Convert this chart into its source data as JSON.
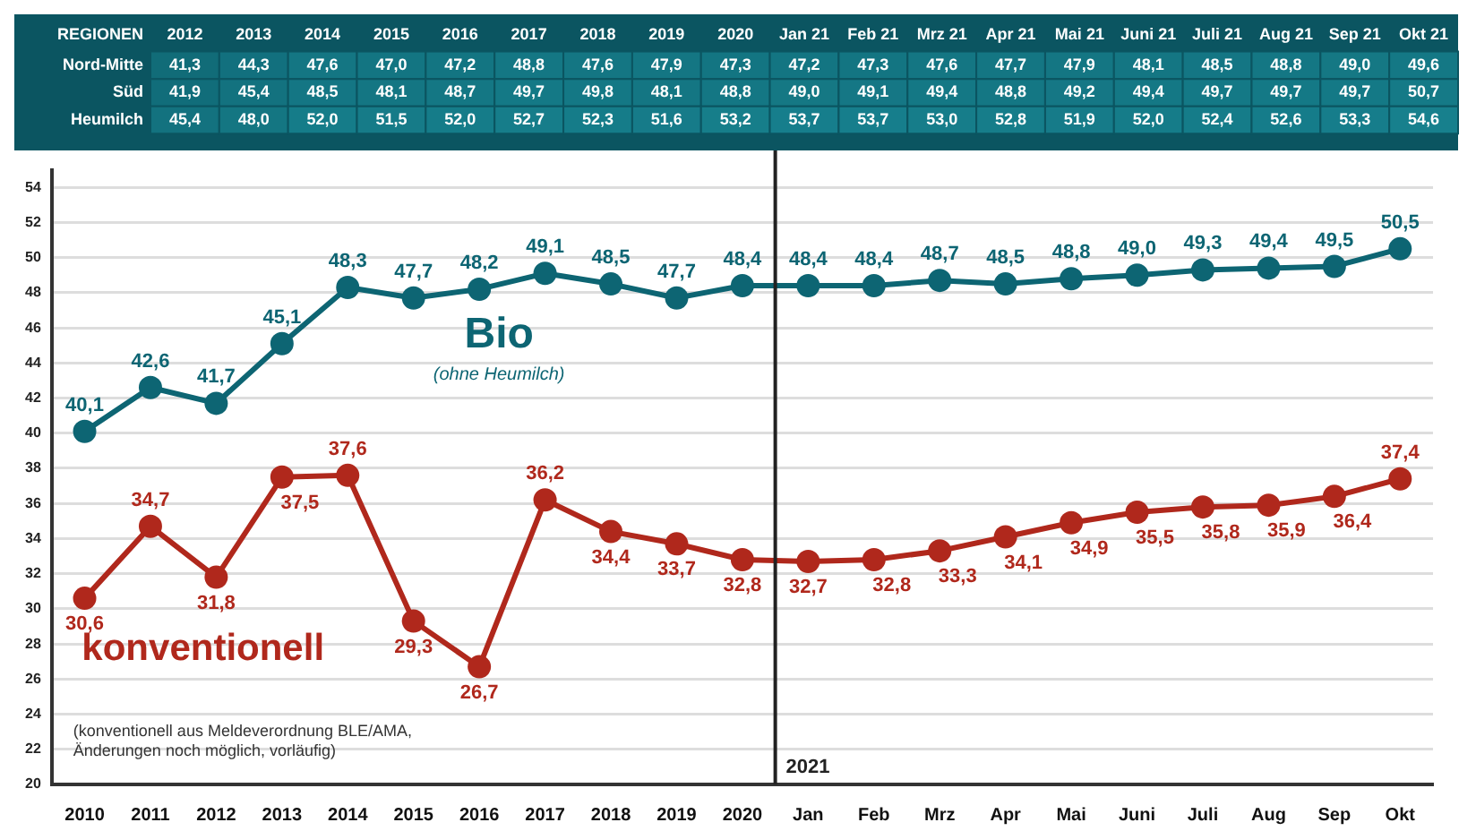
{
  "chart_data": [
    {
      "type": "heatmap",
      "ylabel": "REGIONEN",
      "color": "#17808d",
      "categories": [
        "2012",
        "2013",
        "2014",
        "2015",
        "2016",
        "2017",
        "2018",
        "2019",
        "2020",
        "Jan 21",
        "Feb 21",
        "Mrz 21",
        "Apr 21",
        "Mai 21",
        "Juni 21",
        "Juli 21",
        "Aug 21",
        "Sep 21",
        "Okt 21"
      ],
      "y_categories": [
        "Nord-Mitte",
        "Süd",
        "Heumilch"
      ],
      "cells": [
        [
          41.3,
          44.3,
          47.6,
          47.0,
          47.2,
          48.8,
          47.6,
          47.9,
          47.3,
          47.2,
          47.3,
          47.6,
          47.7,
          47.9,
          48.1,
          48.5,
          48.8,
          49.0,
          49.6
        ],
        [
          41.9,
          45.4,
          48.5,
          48.1,
          48.7,
          49.7,
          49.8,
          48.1,
          48.8,
          49.0,
          49.1,
          49.4,
          48.8,
          49.2,
          49.4,
          49.7,
          49.7,
          49.7,
          50.7
        ],
        [
          45.4,
          48.0,
          52.0,
          51.5,
          52.0,
          52.7,
          52.3,
          51.6,
          53.2,
          53.7,
          53.7,
          53.0,
          52.8,
          51.9,
          52.0,
          52.4,
          52.6,
          53.3,
          54.6
        ]
      ],
      "cell_labels": [
        [
          "41,3",
          "44,3",
          "47,6",
          "47,0",
          "47,2",
          "48,8",
          "47,6",
          "47,9",
          "47,3",
          "47,2",
          "47,3",
          "47,6",
          "47,7",
          "47,9",
          "48,1",
          "48,5",
          "48,8",
          "49,0",
          "49,6"
        ],
        [
          "41,9",
          "45,4",
          "48,5",
          "48,1",
          "48,7",
          "49,7",
          "49,8",
          "48,1",
          "48,8",
          "49,0",
          "49,1",
          "49,4",
          "48,8",
          "49,2",
          "49,4",
          "49,7",
          "49,7",
          "49,7",
          "50,7"
        ],
        [
          "45,4",
          "48,0",
          "52,0",
          "51,5",
          "52,0",
          "52,7",
          "52,3",
          "51,6",
          "53,2",
          "53,7",
          "53,7",
          "53,0",
          "52,8",
          "51,9",
          "52,0",
          "52,4",
          "52,6",
          "53,3",
          "54,6"
        ]
      ]
    },
    {
      "type": "line",
      "categories": [
        "2010",
        "2011",
        "2012",
        "2013",
        "2014",
        "2015",
        "2016",
        "2017",
        "2018",
        "2019",
        "2020",
        "Jan",
        "Feb",
        "Mrz",
        "Apr",
        "Mai",
        "Juni",
        "Juli",
        "Aug",
        "Sep",
        "Okt"
      ],
      "series": [
        {
          "name": "Bio",
          "color": "#0d6573",
          "values": [
            40.1,
            42.6,
            41.7,
            45.1,
            48.3,
            47.7,
            48.2,
            49.1,
            48.5,
            47.7,
            48.4,
            48.4,
            48.4,
            48.7,
            48.5,
            48.8,
            49.0,
            49.3,
            49.4,
            49.5,
            50.5
          ],
          "value_labels": [
            "40,1",
            "42,6",
            "41,7",
            "45,1",
            "48,3",
            "47,7",
            "48,2",
            "49,1",
            "48,5",
            "47,7",
            "48,4",
            "48,4",
            "48,4",
            "48,7",
            "48,5",
            "48,8",
            "49,0",
            "49,3",
            "49,4",
            "49,5",
            "50,5"
          ]
        },
        {
          "name": "konventionell",
          "color": "#b0281c",
          "values": [
            30.6,
            34.7,
            31.8,
            37.5,
            37.6,
            29.3,
            26.7,
            36.2,
            34.4,
            33.7,
            32.8,
            32.7,
            32.8,
            33.3,
            34.1,
            34.9,
            35.5,
            35.8,
            35.9,
            36.4,
            37.4
          ],
          "value_labels": [
            "30,6",
            "34,7",
            "31,8",
            "37,5",
            "37,6",
            "29,3",
            "26,7",
            "36,2",
            "34,4",
            "33,7",
            "32,8",
            "32,7",
            "32,8",
            "33,3",
            "34,1",
            "34,9",
            "35,5",
            "35,8",
            "35,9",
            "36,4",
            "37,4"
          ]
        }
      ],
      "ylim": [
        20,
        55
      ],
      "yticks": [
        20,
        22,
        24,
        26,
        28,
        30,
        32,
        34,
        36,
        38,
        40,
        42,
        44,
        46,
        48,
        50,
        52,
        54
      ],
      "grid": "y",
      "marker": "circle",
      "ref_lines": [
        {
          "axis": "x",
          "value": "Jan",
          "label": "2021",
          "color": "#222222"
        }
      ],
      "annotations": [
        "(ohne Heumilch)",
        "(konventionell aus Meldeverordnung BLE/AMA, Änderungen noch möglich, vorläufig)"
      ]
    }
  ]
}
